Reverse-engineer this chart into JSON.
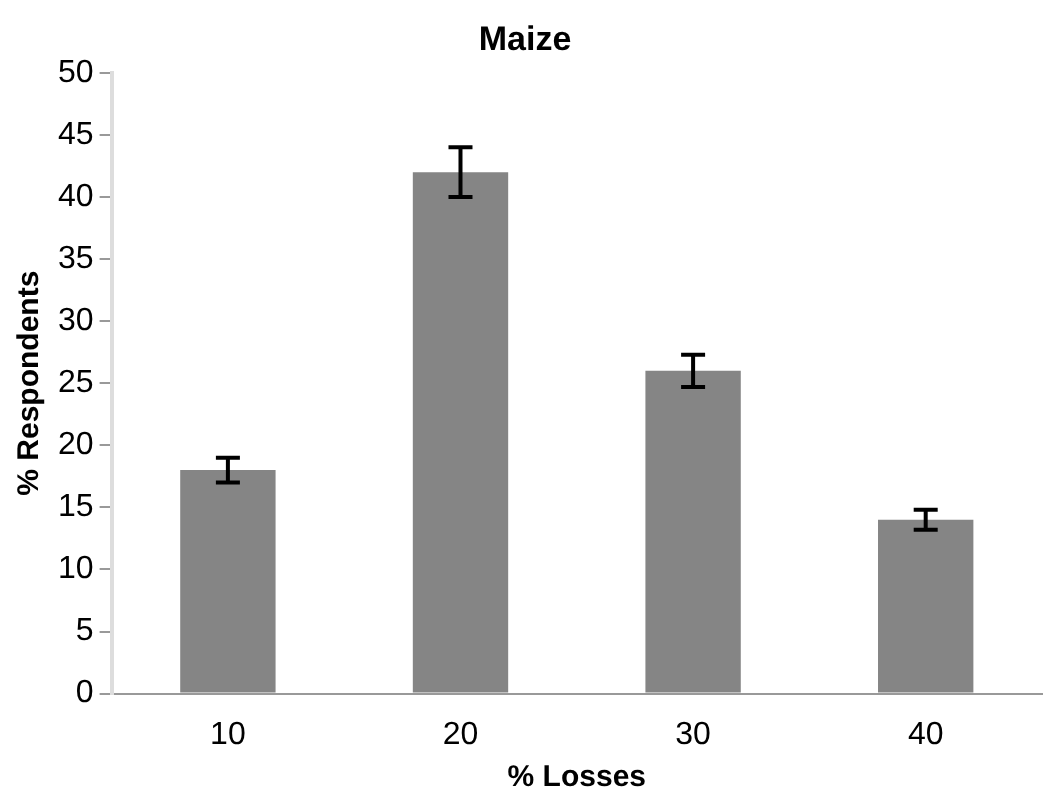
{
  "chart_data": {
    "type": "bar",
    "title": "Maize",
    "xlabel": "% Losses",
    "ylabel": "% Respondents",
    "categories": [
      "10",
      "20",
      "30",
      "40"
    ],
    "values": [
      18,
      42,
      26,
      14
    ],
    "errors": [
      1,
      2,
      1.3,
      0.8
    ],
    "color": "#858585",
    "ylim": [
      0,
      50
    ],
    "yticks": [
      0,
      5,
      10,
      15,
      20,
      25,
      30,
      35,
      40,
      45,
      50
    ],
    "grid": false,
    "legend": false
  }
}
